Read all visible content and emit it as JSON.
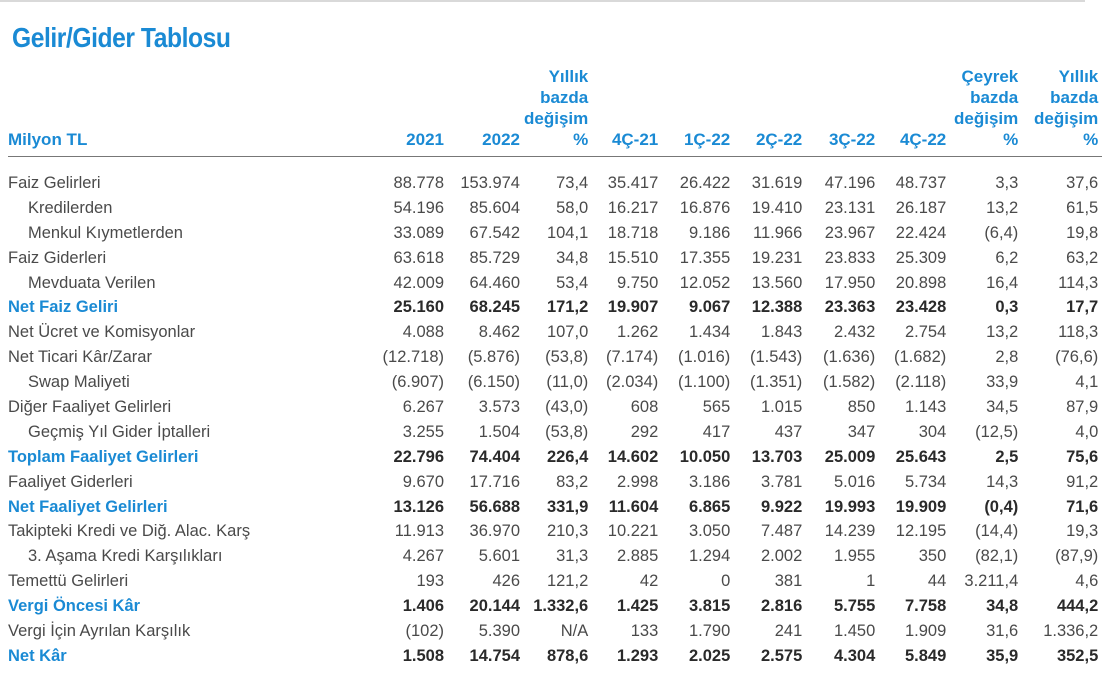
{
  "title": "Gelir/Gider Tablosu",
  "headers": {
    "label": "Milyon TL",
    "cols": [
      [
        "2021"
      ],
      [
        "2022"
      ],
      [
        "Yıllık",
        "bazda",
        "değişim",
        "%"
      ],
      [
        "4Ç-21"
      ],
      [
        "1Ç-22"
      ],
      [
        "2Ç-22"
      ],
      [
        "3Ç-22"
      ],
      [
        "4Ç-22"
      ],
      [
        "Çeyrek",
        "bazda",
        "değişim",
        "%"
      ],
      [
        "Yıllık",
        "bazda",
        "değişim",
        "%"
      ]
    ]
  },
  "rows": [
    {
      "label": "Faiz Gelirleri",
      "indent": false,
      "bold": false,
      "values": [
        "88.778",
        "153.974",
        "73,4",
        "35.417",
        "26.422",
        "31.619",
        "47.196",
        "48.737",
        "3,3",
        "37,6"
      ]
    },
    {
      "label": "Kredilerden",
      "indent": true,
      "bold": false,
      "values": [
        "54.196",
        "85.604",
        "58,0",
        "16.217",
        "16.876",
        "19.410",
        "23.131",
        "26.187",
        "13,2",
        "61,5"
      ]
    },
    {
      "label": "Menkul Kıymetlerden",
      "indent": true,
      "bold": false,
      "values": [
        "33.089",
        "67.542",
        "104,1",
        "18.718",
        "9.186",
        "11.966",
        "23.967",
        "22.424",
        "(6,4)",
        "19,8"
      ]
    },
    {
      "label": "Faiz Giderleri",
      "indent": false,
      "bold": false,
      "values": [
        "63.618",
        "85.729",
        "34,8",
        "15.510",
        "17.355",
        "19.231",
        "23.833",
        "25.309",
        "6,2",
        "63,2"
      ]
    },
    {
      "label": "Mevduata Verilen",
      "indent": true,
      "bold": false,
      "values": [
        "42.009",
        "64.460",
        "53,4",
        "9.750",
        "12.052",
        "13.560",
        "17.950",
        "20.898",
        "16,4",
        "114,3"
      ]
    },
    {
      "label": "Net Faiz Geliri",
      "indent": false,
      "bold": true,
      "values": [
        "25.160",
        "68.245",
        "171,2",
        "19.907",
        "9.067",
        "12.388",
        "23.363",
        "23.428",
        "0,3",
        "17,7"
      ]
    },
    {
      "label": "Net Ücret ve Komisyonlar",
      "indent": false,
      "bold": false,
      "values": [
        "4.088",
        "8.462",
        "107,0",
        "1.262",
        "1.434",
        "1.843",
        "2.432",
        "2.754",
        "13,2",
        "118,3"
      ]
    },
    {
      "label": "Net Ticari Kâr/Zarar",
      "indent": false,
      "bold": false,
      "values": [
        "(12.718)",
        "(5.876)",
        "(53,8)",
        "(7.174)",
        "(1.016)",
        "(1.543)",
        "(1.636)",
        "(1.682)",
        "2,8",
        "(76,6)"
      ]
    },
    {
      "label": "Swap Maliyeti",
      "indent": true,
      "bold": false,
      "values": [
        "(6.907)",
        "(6.150)",
        "(11,0)",
        "(2.034)",
        "(1.100)",
        "(1.351)",
        "(1.582)",
        "(2.118)",
        "33,9",
        "4,1"
      ]
    },
    {
      "label": "Diğer Faaliyet Gelirleri",
      "indent": false,
      "bold": false,
      "values": [
        "6.267",
        "3.573",
        "(43,0)",
        "608",
        "565",
        "1.015",
        "850",
        "1.143",
        "34,5",
        "87,9"
      ]
    },
    {
      "label": "Geçmiş Yıl Gider İptalleri",
      "indent": true,
      "bold": false,
      "values": [
        "3.255",
        "1.504",
        "(53,8)",
        "292",
        "417",
        "437",
        "347",
        "304",
        "(12,5)",
        "4,0"
      ]
    },
    {
      "label": "Toplam Faaliyet Gelirleri",
      "indent": false,
      "bold": true,
      "values": [
        "22.796",
        "74.404",
        "226,4",
        "14.602",
        "10.050",
        "13.703",
        "25.009",
        "25.643",
        "2,5",
        "75,6"
      ]
    },
    {
      "label": "Faaliyet Giderleri",
      "indent": false,
      "bold": false,
      "values": [
        "9.670",
        "17.716",
        "83,2",
        "2.998",
        "3.186",
        "3.781",
        "5.016",
        "5.734",
        "14,3",
        "91,2"
      ]
    },
    {
      "label": "Net Faaliyet Gelirleri",
      "indent": false,
      "bold": true,
      "values": [
        "13.126",
        "56.688",
        "331,9",
        "11.604",
        "6.865",
        "9.922",
        "19.993",
        "19.909",
        "(0,4)",
        "71,6"
      ]
    },
    {
      "label": "Takipteki Kredi ve Diğ. Alac. Karş",
      "indent": false,
      "bold": false,
      "values": [
        "11.913",
        "36.970",
        "210,3",
        "10.221",
        "3.050",
        "7.487",
        "14.239",
        "12.195",
        "(14,4)",
        "19,3"
      ]
    },
    {
      "label": "3. Aşama Kredi Karşılıkları",
      "indent": true,
      "bold": false,
      "values": [
        "4.267",
        "5.601",
        "31,3",
        "2.885",
        "1.294",
        "2.002",
        "1.955",
        "350",
        "(82,1)",
        "(87,9)"
      ]
    },
    {
      "label": "Temettü Gelirleri",
      "indent": false,
      "bold": false,
      "values": [
        "193",
        "426",
        "121,2",
        "42",
        "0",
        "381",
        "1",
        "44",
        "3.211,4",
        "4,6"
      ]
    },
    {
      "label": "Vergi Öncesi Kâr",
      "indent": false,
      "bold": true,
      "values": [
        "1.406",
        "20.144",
        "1.332,6",
        "1.425",
        "3.815",
        "2.816",
        "5.755",
        "7.758",
        "34,8",
        "444,2"
      ]
    },
    {
      "label": "Vergi İçin Ayrılan Karşılık",
      "indent": false,
      "bold": false,
      "values": [
        "(102)",
        "5.390",
        "N/A",
        "133",
        "1.790",
        "241",
        "1.450",
        "1.909",
        "31,6",
        "1.336,2"
      ]
    },
    {
      "label": "Net Kâr",
      "indent": false,
      "bold": true,
      "values": [
        "1.508",
        "14.754",
        "878,6",
        "1.293",
        "2.025",
        "2.575",
        "4.304",
        "5.849",
        "35,9",
        "352,5"
      ]
    }
  ]
}
